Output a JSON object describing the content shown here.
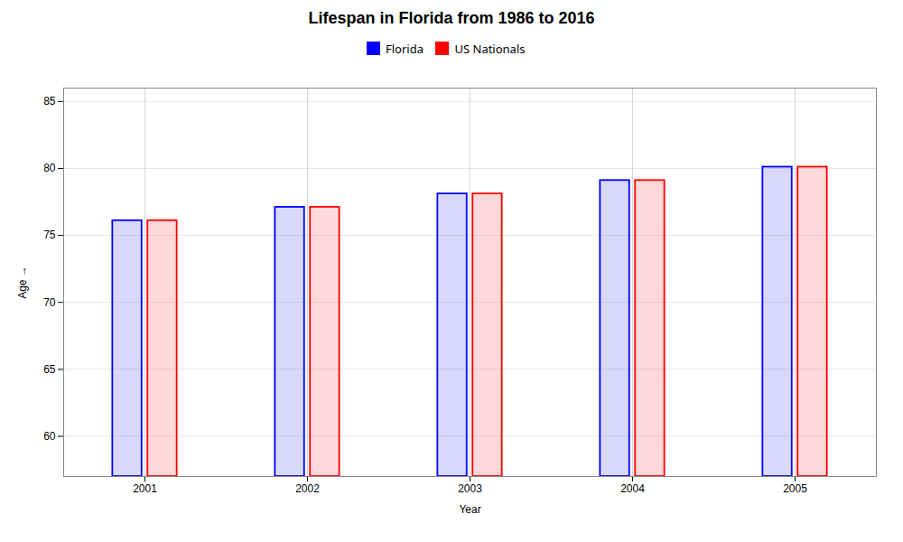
{
  "chart_data": {
    "type": "bar",
    "title": "Lifespan in Florida from 1986 to 2016",
    "xlabel": "Year",
    "ylabel": "Age",
    "categories": [
      "2001",
      "2002",
      "2003",
      "2004",
      "2005"
    ],
    "series": [
      {
        "name": "Florida",
        "color": "#0000ff",
        "values": [
          76.1,
          77.1,
          78.1,
          79.1,
          80.1
        ]
      },
      {
        "name": "US Nationals",
        "color": "#ff0000",
        "values": [
          76.1,
          77.1,
          78.1,
          79.1,
          80.1
        ]
      }
    ],
    "ylim": [
      57,
      86
    ],
    "yticks": [
      60,
      65,
      70,
      75,
      80,
      85
    ],
    "grid": true,
    "legend": "top"
  }
}
